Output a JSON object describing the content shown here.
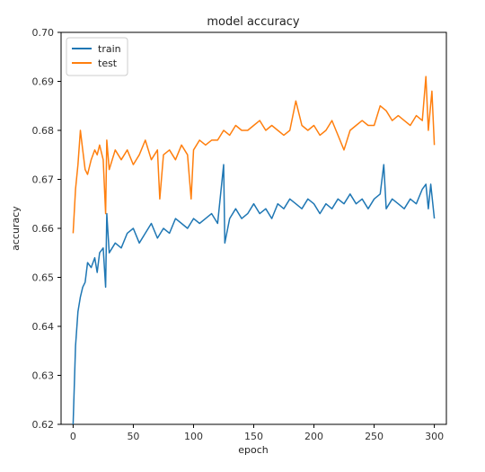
{
  "chart_data": {
    "type": "line",
    "title": "model accuracy",
    "xlabel": "epoch",
    "ylabel": "accuracy",
    "xlim": [
      -10,
      310
    ],
    "ylim": [
      0.62,
      0.7
    ],
    "x_ticks": [
      0,
      50,
      100,
      150,
      200,
      250,
      300
    ],
    "x_tick_labels": [
      "0",
      "50",
      "100",
      "150",
      "200",
      "250",
      "300"
    ],
    "y_ticks": [
      0.62,
      0.63,
      0.64,
      0.65,
      0.66,
      0.67,
      0.68,
      0.69,
      0.7
    ],
    "y_tick_labels": [
      "0.62",
      "0.63",
      "0.64",
      "0.65",
      "0.66",
      "0.67",
      "0.68",
      "0.69",
      "0.70"
    ],
    "grid": false,
    "legend_position": "top-left",
    "series": [
      {
        "name": "train",
        "color": "#1f77b4",
        "points": [
          [
            0,
            0.62
          ],
          [
            2,
            0.636
          ],
          [
            4,
            0.643
          ],
          [
            6,
            0.646
          ],
          [
            8,
            0.648
          ],
          [
            10,
            0.649
          ],
          [
            12,
            0.653
          ],
          [
            15,
            0.652
          ],
          [
            18,
            0.654
          ],
          [
            20,
            0.651
          ],
          [
            22,
            0.655
          ],
          [
            25,
            0.656
          ],
          [
            27,
            0.648
          ],
          [
            28,
            0.663
          ],
          [
            30,
            0.655
          ],
          [
            35,
            0.657
          ],
          [
            40,
            0.656
          ],
          [
            45,
            0.659
          ],
          [
            50,
            0.66
          ],
          [
            55,
            0.657
          ],
          [
            60,
            0.659
          ],
          [
            65,
            0.661
          ],
          [
            70,
            0.658
          ],
          [
            75,
            0.66
          ],
          [
            80,
            0.659
          ],
          [
            85,
            0.662
          ],
          [
            90,
            0.661
          ],
          [
            95,
            0.66
          ],
          [
            100,
            0.662
          ],
          [
            105,
            0.661
          ],
          [
            110,
            0.662
          ],
          [
            115,
            0.663
          ],
          [
            120,
            0.661
          ],
          [
            125,
            0.673
          ],
          [
            126,
            0.657
          ],
          [
            130,
            0.662
          ],
          [
            135,
            0.664
          ],
          [
            140,
            0.662
          ],
          [
            145,
            0.663
          ],
          [
            150,
            0.665
          ],
          [
            155,
            0.663
          ],
          [
            160,
            0.664
          ],
          [
            165,
            0.662
          ],
          [
            170,
            0.665
          ],
          [
            175,
            0.664
          ],
          [
            180,
            0.666
          ],
          [
            185,
            0.665
          ],
          [
            190,
            0.664
          ],
          [
            195,
            0.666
          ],
          [
            200,
            0.665
          ],
          [
            205,
            0.663
          ],
          [
            210,
            0.665
          ],
          [
            215,
            0.664
          ],
          [
            220,
            0.666
          ],
          [
            225,
            0.665
          ],
          [
            230,
            0.667
          ],
          [
            235,
            0.665
          ],
          [
            240,
            0.666
          ],
          [
            245,
            0.664
          ],
          [
            250,
            0.666
          ],
          [
            255,
            0.667
          ],
          [
            258,
            0.673
          ],
          [
            260,
            0.664
          ],
          [
            265,
            0.666
          ],
          [
            270,
            0.665
          ],
          [
            275,
            0.664
          ],
          [
            280,
            0.666
          ],
          [
            285,
            0.665
          ],
          [
            290,
            0.668
          ],
          [
            293,
            0.669
          ],
          [
            295,
            0.664
          ],
          [
            297,
            0.669
          ],
          [
            300,
            0.662
          ]
        ]
      },
      {
        "name": "test",
        "color": "#ff7f0e",
        "points": [
          [
            0,
            0.659
          ],
          [
            2,
            0.668
          ],
          [
            4,
            0.673
          ],
          [
            6,
            0.68
          ],
          [
            8,
            0.676
          ],
          [
            10,
            0.672
          ],
          [
            12,
            0.671
          ],
          [
            15,
            0.674
          ],
          [
            18,
            0.676
          ],
          [
            20,
            0.675
          ],
          [
            22,
            0.677
          ],
          [
            25,
            0.674
          ],
          [
            27,
            0.663
          ],
          [
            28,
            0.678
          ],
          [
            30,
            0.672
          ],
          [
            35,
            0.676
          ],
          [
            40,
            0.674
          ],
          [
            45,
            0.676
          ],
          [
            50,
            0.673
          ],
          [
            55,
            0.675
          ],
          [
            60,
            0.678
          ],
          [
            65,
            0.674
          ],
          [
            70,
            0.676
          ],
          [
            72,
            0.666
          ],
          [
            75,
            0.675
          ],
          [
            80,
            0.676
          ],
          [
            85,
            0.674
          ],
          [
            90,
            0.677
          ],
          [
            95,
            0.675
          ],
          [
            98,
            0.666
          ],
          [
            100,
            0.676
          ],
          [
            105,
            0.678
          ],
          [
            110,
            0.677
          ],
          [
            115,
            0.678
          ],
          [
            120,
            0.678
          ],
          [
            125,
            0.68
          ],
          [
            130,
            0.679
          ],
          [
            135,
            0.681
          ],
          [
            140,
            0.68
          ],
          [
            145,
            0.68
          ],
          [
            150,
            0.681
          ],
          [
            155,
            0.682
          ],
          [
            160,
            0.68
          ],
          [
            165,
            0.681
          ],
          [
            170,
            0.68
          ],
          [
            175,
            0.679
          ],
          [
            180,
            0.68
          ],
          [
            185,
            0.686
          ],
          [
            190,
            0.681
          ],
          [
            195,
            0.68
          ],
          [
            200,
            0.681
          ],
          [
            205,
            0.679
          ],
          [
            210,
            0.68
          ],
          [
            215,
            0.682
          ],
          [
            220,
            0.679
          ],
          [
            225,
            0.676
          ],
          [
            230,
            0.68
          ],
          [
            235,
            0.681
          ],
          [
            240,
            0.682
          ],
          [
            245,
            0.681
          ],
          [
            250,
            0.681
          ],
          [
            255,
            0.685
          ],
          [
            260,
            0.684
          ],
          [
            265,
            0.682
          ],
          [
            270,
            0.683
          ],
          [
            275,
            0.682
          ],
          [
            280,
            0.681
          ],
          [
            285,
            0.683
          ],
          [
            290,
            0.682
          ],
          [
            293,
            0.691
          ],
          [
            295,
            0.68
          ],
          [
            298,
            0.688
          ],
          [
            300,
            0.677
          ]
        ]
      }
    ]
  }
}
